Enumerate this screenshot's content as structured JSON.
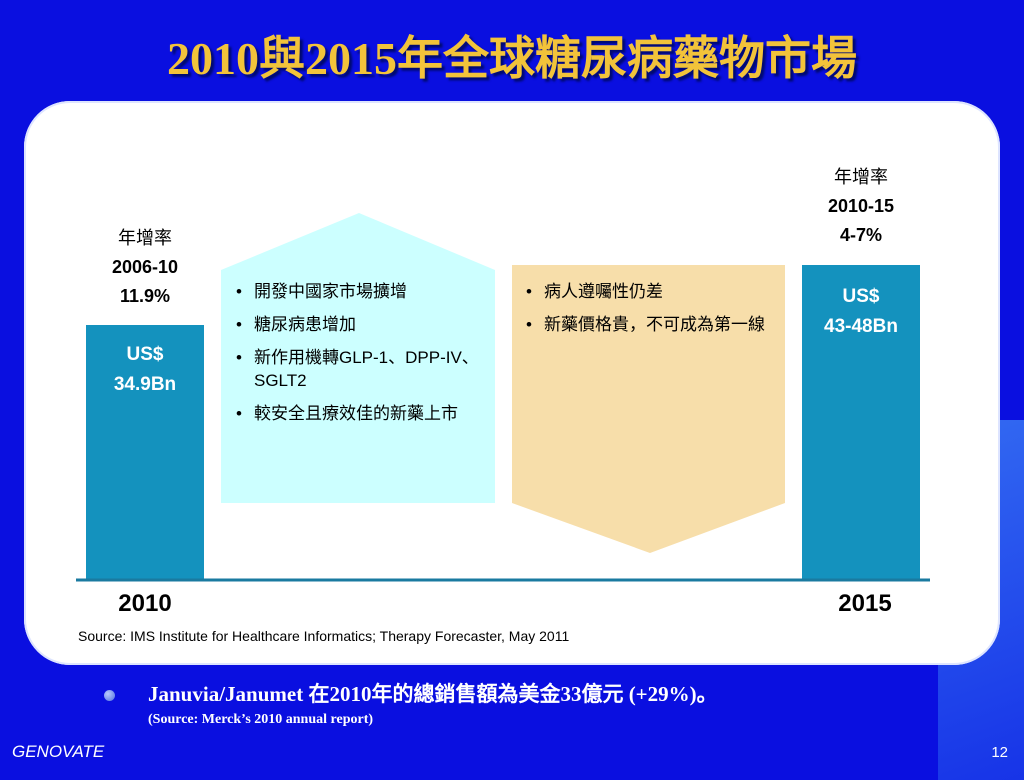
{
  "slide": {
    "title": "2010與2015年全球糖尿病藥物市場",
    "source": "Source: IMS Institute for Healthcare Informatics; Therapy Forecaster, May 2011",
    "note_text": "Januvia/Janumet 在2010年的總銷售額為美金33億元 (+29%)。",
    "note_source": "(Source: Merck’s 2010 annual report)",
    "footer_brand": "GENOVATE",
    "page_number": "12"
  },
  "chart_data": {
    "type": "bar",
    "categories": [
      "2010",
      "2015"
    ],
    "value_labels": [
      [
        "US$",
        "34.9Bn"
      ],
      [
        "US$",
        "43-48Bn"
      ]
    ],
    "growth_labels": [
      {
        "header": "年增率",
        "period": "2006-10",
        "rate": "11.9%"
      },
      {
        "header": "年增率",
        "period": "2010-15",
        "rate": "4-7%"
      }
    ],
    "drivers_up": [
      "開發中國家市場擴增",
      "糖尿病患增加",
      "新作用機轉GLP-1、DPP-IV、SGLT2",
      "較安全且療效佳的新藥上市"
    ],
    "drivers_down": [
      "病人遵囑性仍差",
      "新藥價格貴，不可成為第一線"
    ],
    "colors": {
      "bar": "#1492be",
      "up_arrow": "#ccffff",
      "down_arrow": "#f7deaa",
      "axis": "#1a7aa0"
    }
  }
}
